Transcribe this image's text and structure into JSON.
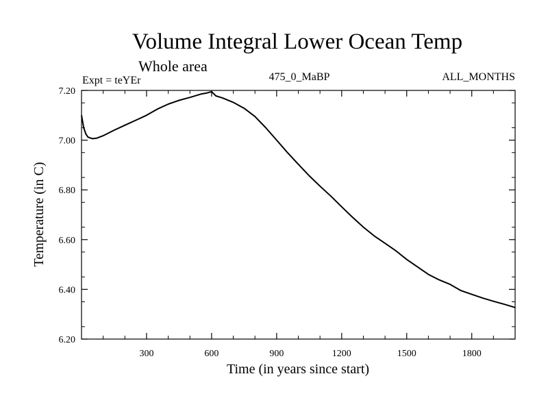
{
  "chart_data": {
    "type": "line",
    "title": "Volume Integral Lower Ocean Temp",
    "subtitle": "Whole area",
    "experiment": "Expt = teYEr",
    "period": "475_0_MaBP",
    "months": "ALL_MONTHS",
    "xlabel": "Time (in years since start)",
    "ylabel": "Temperature (in C)",
    "xlim": [
      0,
      2000
    ],
    "ylim": [
      6.2,
      7.2
    ],
    "xticks": [
      300,
      600,
      900,
      1200,
      1500,
      1800
    ],
    "xtick_labels": [
      "300",
      "600",
      "900",
      "1200",
      "1500",
      "1800"
    ],
    "yticks": [
      6.2,
      6.4,
      6.6,
      6.8,
      7.0,
      7.2
    ],
    "ytick_labels": [
      "6.20",
      "6.40",
      "6.60",
      "6.80",
      "7.00",
      "7.20"
    ],
    "grid": false,
    "series": [
      {
        "name": "Lower Ocean Temp",
        "color": "#000000",
        "x": [
          0,
          10,
          20,
          30,
          50,
          70,
          100,
          150,
          200,
          250,
          300,
          350,
          400,
          450,
          500,
          550,
          580,
          600,
          620,
          650,
          700,
          750,
          800,
          850,
          900,
          950,
          1000,
          1050,
          1100,
          1150,
          1200,
          1250,
          1300,
          1350,
          1400,
          1450,
          1500,
          1550,
          1600,
          1650,
          1700,
          1750,
          1800,
          1850,
          1900,
          1950,
          2000
        ],
        "y": [
          7.1,
          7.05,
          7.025,
          7.012,
          7.006,
          7.008,
          7.018,
          7.04,
          7.06,
          7.08,
          7.1,
          7.125,
          7.145,
          7.16,
          7.172,
          7.185,
          7.19,
          7.195,
          7.178,
          7.17,
          7.152,
          7.128,
          7.095,
          7.05,
          7.0,
          6.95,
          6.903,
          6.857,
          6.815,
          6.775,
          6.732,
          6.69,
          6.65,
          6.615,
          6.585,
          6.555,
          6.52,
          6.49,
          6.46,
          6.438,
          6.42,
          6.395,
          6.38,
          6.365,
          6.352,
          6.34,
          6.327
        ]
      }
    ]
  }
}
